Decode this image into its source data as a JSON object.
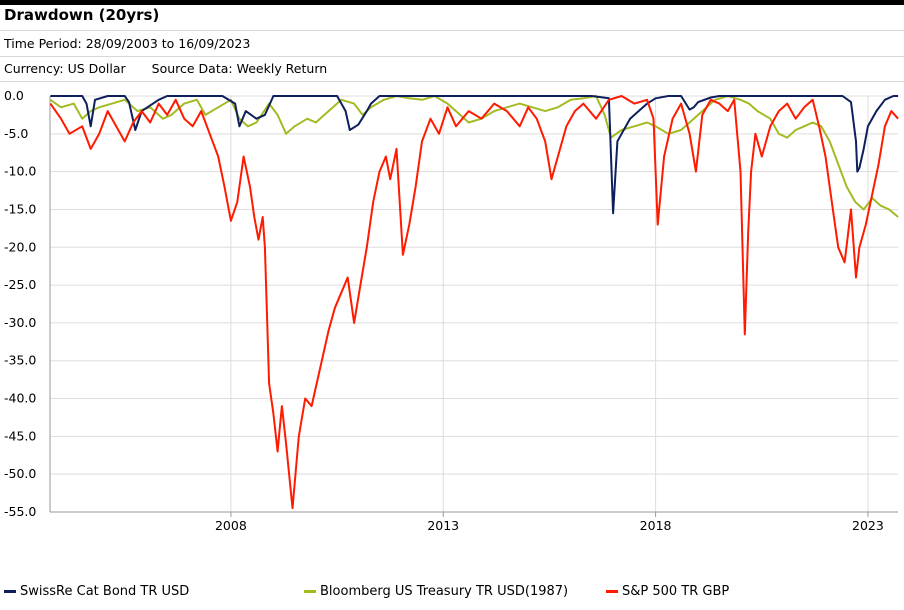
{
  "header": {
    "title": "Drawdown (20yrs)",
    "time_period": "Time Period: 28/09/2003 to 16/09/2023",
    "currency": "Currency: US Dollar",
    "source": "Source Data: Weekly Return"
  },
  "chart_data": {
    "type": "line",
    "title": "Drawdown (20yrs)",
    "xlabel": "",
    "ylabel": "",
    "x_range": [
      "2003-09-28",
      "2023-09-16"
    ],
    "ylim": [
      -55,
      0
    ],
    "y_ticks": [
      "0.0",
      "-5.0",
      "-10.0",
      "-15.0",
      "-20.0",
      "-25.0",
      "-30.0",
      "-35.0",
      "-40.0",
      "-45.0",
      "-50.0",
      "-55.0"
    ],
    "x_ticks": [
      "2008",
      "2013",
      "2018",
      "2023"
    ],
    "grid": true,
    "legend_position": "bottom",
    "series": [
      {
        "name": "SwissRe Cat Bond TR USD",
        "color": "#0d1f5c",
        "x": [
          2003.75,
          2004.5,
          2004.6,
          2004.7,
          2004.8,
          2005.1,
          2005.5,
          2005.6,
          2005.75,
          2005.9,
          2006.3,
          2006.5,
          2007.0,
          2007.5,
          2007.8,
          2008.1,
          2008.2,
          2008.35,
          2008.6,
          2008.8,
          2009.0,
          2009.3,
          2009.6,
          2010.0,
          2010.5,
          2010.7,
          2010.8,
          2011.0,
          2011.2,
          2011.3,
          2011.5,
          2012.0,
          2013.0,
          2014.0,
          2015.0,
          2016.0,
          2016.5,
          2016.9,
          2017.0,
          2017.1,
          2017.2,
          2017.4,
          2017.6,
          2017.8,
          2018.0,
          2018.3,
          2018.6,
          2018.8,
          2018.9,
          2019.0,
          2019.3,
          2019.5,
          2020.0,
          2020.2,
          2020.4,
          2020.6,
          2021.0,
          2022.0,
          2022.4,
          2022.6,
          2022.72,
          2022.75,
          2022.8,
          2022.9,
          2023.0,
          2023.2,
          2023.4,
          2023.6,
          2023.71
        ],
        "y": [
          0,
          0,
          -1.0,
          -4.0,
          -0.5,
          0,
          0,
          -0.8,
          -4.5,
          -2.0,
          -0.5,
          0,
          0,
          0,
          0,
          -1.0,
          -4.0,
          -2.0,
          -3.0,
          -2.5,
          0,
          0,
          0,
          0,
          0,
          -2.0,
          -4.5,
          -3.8,
          -2.0,
          -1.0,
          0,
          0,
          0,
          0,
          0,
          0,
          0,
          -0.3,
          -15.5,
          -6.0,
          -5.0,
          -3.0,
          -2.0,
          -1.0,
          -0.3,
          0,
          0,
          -1.8,
          -1.5,
          -0.8,
          -0.2,
          0,
          0,
          0,
          0,
          0,
          0,
          0,
          0,
          -0.8,
          -6.0,
          -10.0,
          -9.5,
          -7.0,
          -4.0,
          -2.0,
          -0.5,
          0,
          0
        ]
      },
      {
        "name": "Bloomberg US Treasury TR USD(1987)",
        "color": "#a3bb23",
        "x": [
          2003.75,
          2004.0,
          2004.3,
          2004.5,
          2004.7,
          2004.9,
          2005.2,
          2005.5,
          2005.8,
          2006.1,
          2006.4,
          2006.6,
          2006.9,
          2007.2,
          2007.4,
          2007.7,
          2008.0,
          2008.2,
          2008.4,
          2008.6,
          2008.9,
          2009.1,
          2009.3,
          2009.5,
          2009.8,
          2010.0,
          2010.3,
          2010.6,
          2010.9,
          2011.1,
          2011.3,
          2011.6,
          2011.9,
          2012.2,
          2012.5,
          2012.8,
          2013.1,
          2013.4,
          2013.6,
          2013.9,
          2014.2,
          2014.5,
          2014.8,
          2015.1,
          2015.4,
          2015.7,
          2016.0,
          2016.3,
          2016.6,
          2016.8,
          2016.95,
          2017.2,
          2017.5,
          2017.8,
          2018.0,
          2018.3,
          2018.6,
          2018.9,
          2019.2,
          2019.4,
          2019.7,
          2020.0,
          2020.2,
          2020.4,
          2020.7,
          2020.9,
          2021.1,
          2021.3,
          2021.5,
          2021.7,
          2021.9,
          2022.1,
          2022.3,
          2022.5,
          2022.7,
          2022.9,
          2023.1,
          2023.3,
          2023.5,
          2023.71
        ],
        "y": [
          -0.5,
          -1.5,
          -1.0,
          -3.0,
          -2.0,
          -1.5,
          -1.0,
          -0.5,
          -2.0,
          -1.5,
          -3.0,
          -2.5,
          -1.0,
          -0.5,
          -2.5,
          -1.5,
          -0.5,
          -3.0,
          -4.0,
          -3.5,
          -1.0,
          -2.5,
          -5.0,
          -4.0,
          -3.0,
          -3.5,
          -2.0,
          -0.5,
          -1.0,
          -2.5,
          -1.5,
          -0.5,
          0,
          -0.3,
          -0.5,
          0,
          -1.0,
          -2.5,
          -3.5,
          -3.0,
          -2.0,
          -1.5,
          -1.0,
          -1.5,
          -2.0,
          -1.5,
          -0.5,
          -0.3,
          0,
          -2.5,
          -5.5,
          -4.5,
          -4.0,
          -3.5,
          -4.0,
          -5.0,
          -4.5,
          -3.0,
          -1.5,
          -0.5,
          0,
          -0.5,
          -1.0,
          -2.0,
          -3.0,
          -5.0,
          -5.5,
          -4.5,
          -4.0,
          -3.5,
          -4.0,
          -6.0,
          -9.0,
          -12.0,
          -14.0,
          -15.0,
          -13.5,
          -14.5,
          -15.0,
          -16.0
        ]
      },
      {
        "name": "S&P 500 TR GBP",
        "color": "#ff1a00",
        "x": [
          2003.75,
          2004.0,
          2004.2,
          2004.5,
          2004.7,
          2004.9,
          2005.1,
          2005.3,
          2005.5,
          2005.7,
          2005.9,
          2006.1,
          2006.3,
          2006.5,
          2006.7,
          2006.9,
          2007.1,
          2007.3,
          2007.5,
          2007.7,
          2007.85,
          2008.0,
          2008.15,
          2008.3,
          2008.45,
          2008.55,
          2008.65,
          2008.75,
          2008.8,
          2008.9,
          2009.0,
          2009.1,
          2009.15,
          2009.2,
          2009.3,
          2009.45,
          2009.6,
          2009.75,
          2009.9,
          2010.1,
          2010.3,
          2010.45,
          2010.6,
          2010.75,
          2010.9,
          2011.05,
          2011.2,
          2011.35,
          2011.5,
          2011.65,
          2011.75,
          2011.9,
          2012.05,
          2012.2,
          2012.35,
          2012.5,
          2012.7,
          2012.9,
          2013.1,
          2013.3,
          2013.6,
          2013.9,
          2014.2,
          2014.5,
          2014.8,
          2015.0,
          2015.2,
          2015.4,
          2015.55,
          2015.7,
          2015.9,
          2016.1,
          2016.3,
          2016.6,
          2016.9,
          2017.2,
          2017.5,
          2017.8,
          2017.95,
          2018.05,
          2018.2,
          2018.4,
          2018.6,
          2018.8,
          2018.95,
          2019.1,
          2019.3,
          2019.5,
          2019.7,
          2019.85,
          2020.0,
          2020.1,
          2020.18,
          2020.25,
          2020.35,
          2020.5,
          2020.7,
          2020.9,
          2021.1,
          2021.3,
          2021.5,
          2021.7,
          2021.85,
          2022.0,
          2022.15,
          2022.3,
          2022.45,
          2022.6,
          2022.72,
          2022.8,
          2022.95,
          2023.1,
          2023.25,
          2023.4,
          2023.55,
          2023.71
        ],
        "y": [
          -1.0,
          -3.0,
          -5.0,
          -4.0,
          -7.0,
          -5.0,
          -2.0,
          -4.0,
          -6.0,
          -3.5,
          -2.0,
          -3.5,
          -1.0,
          -2.5,
          -0.5,
          -3.0,
          -4.0,
          -2.0,
          -5.0,
          -8.0,
          -12.0,
          -16.5,
          -14.0,
          -8.0,
          -12.0,
          -16.0,
          -19.0,
          -16.0,
          -20.0,
          -38.0,
          -42.0,
          -47.0,
          -44.0,
          -41.0,
          -46.0,
          -54.5,
          -45.0,
          -40.0,
          -41.0,
          -36.0,
          -31.0,
          -28.0,
          -26.0,
          -24.0,
          -30.0,
          -25.0,
          -20.0,
          -14.0,
          -10.0,
          -8.0,
          -11.0,
          -7.0,
          -21.0,
          -17.0,
          -12.0,
          -6.0,
          -3.0,
          -5.0,
          -1.5,
          -4.0,
          -2.0,
          -3.0,
          -1.0,
          -2.0,
          -4.0,
          -1.5,
          -3.0,
          -6.0,
          -11.0,
          -8.0,
          -4.0,
          -2.0,
          -1.0,
          -3.0,
          -0.5,
          0,
          -1.0,
          -0.5,
          -3.0,
          -17.0,
          -8.0,
          -3.0,
          -1.0,
          -5.0,
          -10.0,
          -2.5,
          -0.5,
          -1.0,
          -2.0,
          -0.5,
          -10.0,
          -31.5,
          -18.0,
          -10.0,
          -5.0,
          -8.0,
          -4.0,
          -2.0,
          -1.0,
          -3.0,
          -1.5,
          -0.5,
          -4.0,
          -8.0,
          -14.0,
          -20.0,
          -22.0,
          -15.0,
          -24.0,
          -20.0,
          -17.0,
          -13.0,
          -9.0,
          -4.0,
          -2.0,
          -3.0
        ]
      }
    ]
  },
  "legend": {
    "items": [
      "SwissRe Cat Bond TR USD",
      "Bloomberg US Treasury TR USD(1987)",
      "S&P 500 TR GBP"
    ]
  }
}
